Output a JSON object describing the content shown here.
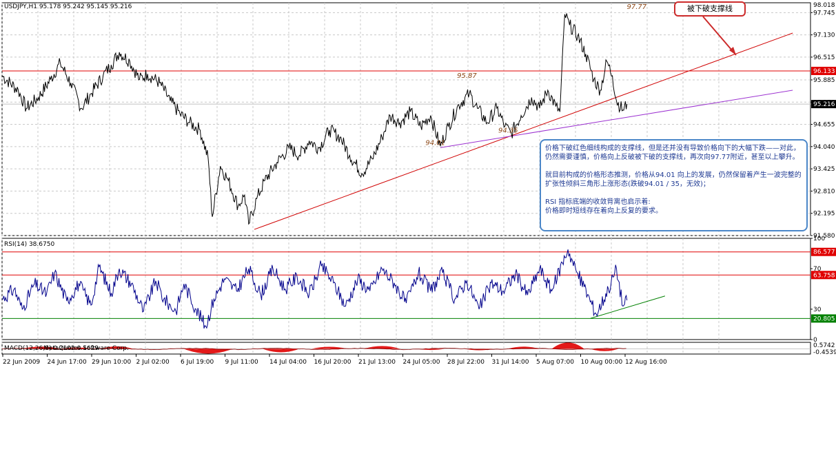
{
  "header": {
    "symbol": "USDJPY,H1",
    "ohlc": "95.178 95.242 95.145 95.216"
  },
  "callout_title": "被下破支撑线",
  "callout_text": {
    "p1": "价格下破红色细线构成的支撑线，但是还并没有导致价格向下的大幅下跌——对此，仍然需要谨慎，价格向上反破被下破的支撑线，再次向97.77附近，甚至以上攀升。",
    "p2": "就目前构成的价格形态推测，价格从94.01 向上的发展，仍然保留着产生一波完整的扩张性倾斜三角形上涨形态(跌破94.01 / 35，无效)；",
    "p3": "RSI 指标底端的收敛背离也启示着:\n价格即时短线存在着向上反复的要求。"
  },
  "chart_data": [
    {
      "type": "line",
      "name": "price",
      "title": "USDJPY,H1 95.178 95.242 95.145 95.216",
      "ylim": [
        91.58,
        98.018
      ],
      "yticks": [
        "97.745",
        "97.130",
        "96.515",
        "95.885",
        "95.270",
        "94.655",
        "94.040",
        "93.425",
        "92.810",
        "92.195",
        "91.580"
      ],
      "top_label": "98.018",
      "hlines": [
        {
          "value": 96.133,
          "label": "96.133",
          "color": "#e00000"
        },
        {
          "value": 95.216,
          "label": "95.216",
          "color": "#c0c0c0"
        }
      ],
      "annotations": [
        {
          "text": "97.77",
          "t": 0.785,
          "value": 97.77
        },
        {
          "text": "95.87",
          "t": 0.575,
          "value": 95.87
        },
        {
          "text": "94.35",
          "t": 0.626,
          "value": 94.35
        },
        {
          "text": "94.01",
          "t": 0.536,
          "value": 94.01
        }
      ],
      "trendlines": [
        {
          "color": "#d00000",
          "points": [
            [
              0.312,
              91.75
            ],
            [
              0.978,
              97.18
            ]
          ]
        },
        {
          "color": "#9b30d0",
          "points": [
            [
              0.542,
              94.01
            ],
            [
              0.978,
              95.6
            ]
          ]
        }
      ],
      "path": [
        [
          0.0,
          96.0
        ],
        [
          0.02,
          95.6
        ],
        [
          0.03,
          95.1
        ],
        [
          0.045,
          95.4
        ],
        [
          0.06,
          95.9
        ],
        [
          0.072,
          96.35
        ],
        [
          0.085,
          95.8
        ],
        [
          0.098,
          95.1
        ],
        [
          0.11,
          95.5
        ],
        [
          0.125,
          96.0
        ],
        [
          0.135,
          96.3
        ],
        [
          0.145,
          96.65
        ],
        [
          0.158,
          96.4
        ],
        [
          0.17,
          95.9
        ],
        [
          0.18,
          96.05
        ],
        [
          0.195,
          95.8
        ],
        [
          0.208,
          95.3
        ],
        [
          0.22,
          94.95
        ],
        [
          0.232,
          94.7
        ],
        [
          0.245,
          94.5
        ],
        [
          0.255,
          93.7
        ],
        [
          0.26,
          92.1
        ],
        [
          0.27,
          93.5
        ],
        [
          0.28,
          93.1
        ],
        [
          0.292,
          92.4
        ],
        [
          0.3,
          92.7
        ],
        [
          0.305,
          91.9
        ],
        [
          0.315,
          92.6
        ],
        [
          0.325,
          93.1
        ],
        [
          0.34,
          93.6
        ],
        [
          0.355,
          94.0
        ],
        [
          0.368,
          93.8
        ],
        [
          0.38,
          94.2
        ],
        [
          0.392,
          94.0
        ],
        [
          0.405,
          94.5
        ],
        [
          0.418,
          94.3
        ],
        [
          0.43,
          93.8
        ],
        [
          0.445,
          93.3
        ],
        [
          0.458,
          93.7
        ],
        [
          0.47,
          94.3
        ],
        [
          0.48,
          94.9
        ],
        [
          0.492,
          94.7
        ],
        [
          0.505,
          95.0
        ],
        [
          0.518,
          94.6
        ],
        [
          0.53,
          94.9
        ],
        [
          0.542,
          94.05
        ],
        [
          0.552,
          94.6
        ],
        [
          0.565,
          95.2
        ],
        [
          0.578,
          95.5
        ],
        [
          0.588,
          95.1
        ],
        [
          0.6,
          94.7
        ],
        [
          0.612,
          95.1
        ],
        [
          0.622,
          94.6
        ],
        [
          0.63,
          94.4
        ],
        [
          0.642,
          94.9
        ],
        [
          0.655,
          95.4
        ],
        [
          0.665,
          95.1
        ],
        [
          0.675,
          95.6
        ],
        [
          0.685,
          95.15
        ],
        [
          0.69,
          95.0
        ],
        [
          0.696,
          97.7
        ],
        [
          0.702,
          97.4
        ],
        [
          0.712,
          97.1
        ],
        [
          0.722,
          96.6
        ],
        [
          0.732,
          95.9
        ],
        [
          0.74,
          95.6
        ],
        [
          0.748,
          96.4
        ],
        [
          0.755,
          96.0
        ],
        [
          0.76,
          95.3
        ],
        [
          0.768,
          95.05
        ],
        [
          0.773,
          95.216
        ]
      ]
    },
    {
      "type": "line",
      "name": "RSI(14)",
      "title": "RSI(14) 38.6750",
      "ylim": [
        0,
        100
      ],
      "yticks": [
        "100",
        "70",
        "30",
        "0"
      ],
      "hlines": [
        {
          "value": 86.577,
          "label": "86.577",
          "color": "#e00000"
        },
        {
          "value": 63.758,
          "label": "63.758",
          "color": "#e00000"
        },
        {
          "value": 20.805,
          "label": "20.805",
          "color": "#008000"
        }
      ],
      "trendlines": [
        {
          "color": "#008000",
          "points": [
            [
              0.728,
              21.0
            ],
            [
              0.82,
              43.0
            ]
          ]
        }
      ],
      "path": [
        [
          0.0,
          40
        ],
        [
          0.015,
          50
        ],
        [
          0.025,
          30
        ],
        [
          0.04,
          55
        ],
        [
          0.055,
          45
        ],
        [
          0.065,
          66
        ],
        [
          0.08,
          38
        ],
        [
          0.095,
          55
        ],
        [
          0.11,
          34
        ],
        [
          0.12,
          72
        ],
        [
          0.135,
          46
        ],
        [
          0.145,
          70
        ],
        [
          0.16,
          55
        ],
        [
          0.175,
          28
        ],
        [
          0.19,
          58
        ],
        [
          0.2,
          40
        ],
        [
          0.215,
          28
        ],
        [
          0.225,
          55
        ],
        [
          0.24,
          30
        ],
        [
          0.252,
          13
        ],
        [
          0.262,
          40
        ],
        [
          0.275,
          60
        ],
        [
          0.29,
          48
        ],
        [
          0.305,
          70
        ],
        [
          0.32,
          44
        ],
        [
          0.335,
          70
        ],
        [
          0.35,
          50
        ],
        [
          0.365,
          62
        ],
        [
          0.38,
          45
        ],
        [
          0.395,
          73
        ],
        [
          0.41,
          56
        ],
        [
          0.425,
          33
        ],
        [
          0.44,
          60
        ],
        [
          0.455,
          48
        ],
        [
          0.47,
          70
        ],
        [
          0.485,
          56
        ],
        [
          0.5,
          36
        ],
        [
          0.515,
          66
        ],
        [
          0.53,
          48
        ],
        [
          0.545,
          66
        ],
        [
          0.56,
          40
        ],
        [
          0.575,
          58
        ],
        [
          0.59,
          30
        ],
        [
          0.605,
          56
        ],
        [
          0.62,
          48
        ],
        [
          0.635,
          65
        ],
        [
          0.65,
          44
        ],
        [
          0.665,
          70
        ],
        [
          0.68,
          48
        ],
        [
          0.693,
          76
        ],
        [
          0.7,
          89
        ],
        [
          0.71,
          68
        ],
        [
          0.72,
          52
        ],
        [
          0.735,
          25
        ],
        [
          0.75,
          50
        ],
        [
          0.76,
          70
        ],
        [
          0.768,
          33
        ],
        [
          0.773,
          38.675
        ]
      ]
    },
    {
      "type": "bar",
      "name": "MACD",
      "title": "MACD(12,26,9) 0.2102 0.1629",
      "ylim": [
        -0.4539,
        0.5742
      ],
      "yticks": [
        "0.5742",
        "-0.4539"
      ],
      "pulses": [
        {
          "t": 0.048,
          "value": 0.2,
          "width": 0.05
        },
        {
          "t": 0.092,
          "value": 0.12,
          "width": 0.04
        },
        {
          "t": 0.142,
          "value": 0.22,
          "width": 0.04
        },
        {
          "t": 0.255,
          "value": -0.42,
          "width": 0.06
        },
        {
          "t": 0.345,
          "value": -0.3,
          "width": 0.045
        },
        {
          "t": 0.405,
          "value": 0.18,
          "width": 0.045
        },
        {
          "t": 0.47,
          "value": 0.25,
          "width": 0.045
        },
        {
          "t": 0.53,
          "value": -0.1,
          "width": 0.035
        },
        {
          "t": 0.59,
          "value": -0.12,
          "width": 0.035
        },
        {
          "t": 0.645,
          "value": 0.2,
          "width": 0.04
        },
        {
          "t": 0.7,
          "value": 0.55,
          "width": 0.04
        },
        {
          "t": 0.745,
          "value": -0.2,
          "width": 0.035
        }
      ],
      "watermark": "MetaQuotes Software Corp."
    }
  ],
  "x_axis": {
    "labels": [
      "22 Jun 2009",
      "24 Jun 17:00",
      "29 Jun 10:00",
      "2 Jul 02:00",
      "6 Jul 19:00",
      "9 Jul 11:00",
      "14 Jul 04:00",
      "16 Jul 20:00",
      "21 Jul 13:00",
      "24 Jul 05:00",
      "28 Jul 22:00",
      "31 Jul 14:00",
      "5 Aug 07:00",
      "10 Aug 00:00",
      "12 Aug 16:00"
    ]
  },
  "colors": {
    "price_line": "#000000",
    "rsi_line": "#00008b",
    "macd_bars": "#e00000",
    "grid": "#c8c8c8",
    "resist": "#e00000",
    "support": "#008000",
    "purple": "#9b30d0"
  }
}
